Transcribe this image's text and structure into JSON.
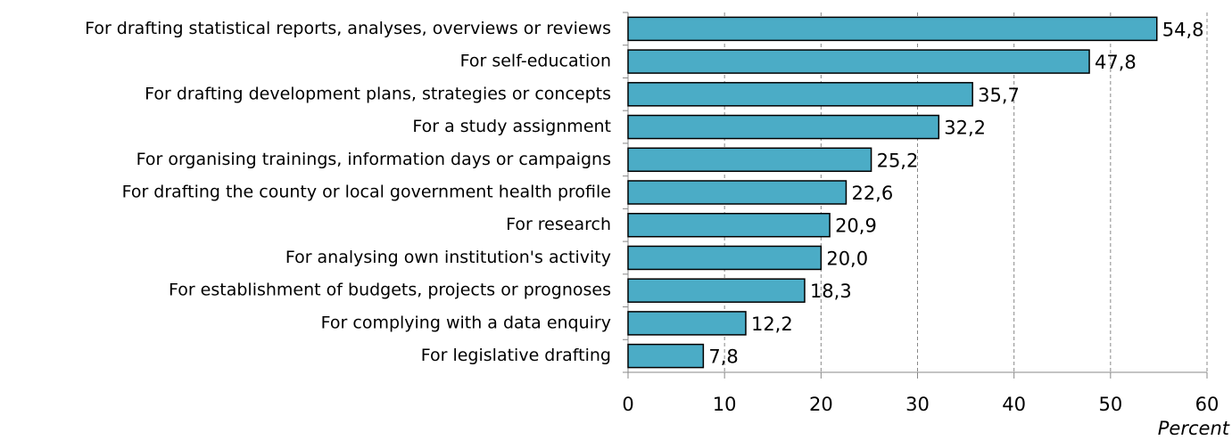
{
  "chart_data": {
    "type": "barh",
    "categories": [
      "For drafting statistical reports, analyses, overviews or reviews",
      "For self-education",
      "For drafting development plans, strategies or concepts",
      "For a study assignment",
      "For organising trainings, information days or campaigns",
      "For drafting the county or local government health profile",
      "For research",
      "For analysing own institution's activity",
      "For establishment of budgets, projects or prognoses",
      "For complying with a data enquiry",
      "For legislative drafting"
    ],
    "values": [
      54.8,
      47.8,
      35.7,
      32.2,
      25.2,
      22.6,
      20.9,
      20.0,
      18.3,
      12.2,
      7.8
    ],
    "value_labels": [
      "54,8",
      "47,8",
      "35,7",
      "32,2",
      "25,2",
      "22,6",
      "20,9",
      "20,0",
      "18,3",
      "12,2",
      "7,8"
    ],
    "color": "#4bacc6",
    "x_label": "Percent",
    "xlim": [
      0,
      60
    ],
    "xticks": [
      0,
      10,
      20,
      30,
      40,
      50,
      60
    ],
    "grid": true
  }
}
